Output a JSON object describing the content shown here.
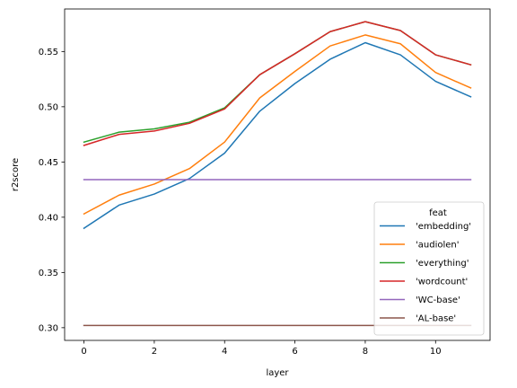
{
  "chart_data": {
    "type": "line",
    "title": "",
    "xlabel": "layer",
    "ylabel": "r2score",
    "xlim": [
      -0.55,
      11.55
    ],
    "ylim": [
      0.2885,
      0.5885
    ],
    "xticks": [
      0,
      2,
      4,
      6,
      8,
      10
    ],
    "xtick_labels": [
      "0",
      "2",
      "4",
      "6",
      "8",
      "10"
    ],
    "yticks": [
      0.3,
      0.35,
      0.4,
      0.45,
      0.5,
      0.55
    ],
    "ytick_labels": [
      "0.30",
      "0.35",
      "0.40",
      "0.45",
      "0.50",
      "0.55"
    ],
    "grid": false,
    "legend": {
      "title": "feat",
      "placement": "lower-right"
    },
    "x": [
      0,
      1,
      2,
      3,
      4,
      5,
      6,
      7,
      8,
      9,
      10,
      11
    ],
    "series": [
      {
        "name": "'embedding'",
        "color": "#1f77b4",
        "values": [
          0.39,
          0.411,
          0.421,
          0.435,
          0.458,
          0.496,
          0.521,
          0.543,
          0.558,
          0.547,
          0.523,
          0.509
        ]
      },
      {
        "name": "'audiolen'",
        "color": "#ff7f0e",
        "values": [
          0.403,
          0.42,
          0.43,
          0.444,
          0.468,
          0.508,
          0.532,
          0.555,
          0.565,
          0.557,
          0.531,
          0.517
        ]
      },
      {
        "name": "'everything'",
        "color": "#2ca02c",
        "values": [
          0.468,
          0.477,
          0.48,
          0.486,
          0.499,
          0.529,
          0.548,
          0.568,
          0.577,
          0.569,
          0.547,
          0.538
        ]
      },
      {
        "name": "'wordcount'",
        "color": "#d62728",
        "values": [
          0.465,
          0.475,
          0.478,
          0.485,
          0.498,
          0.529,
          0.548,
          0.568,
          0.577,
          0.569,
          0.547,
          0.538
        ]
      },
      {
        "name": "'WC-base'",
        "color": "#9467bd",
        "values": [
          0.434,
          0.434,
          0.434,
          0.434,
          0.434,
          0.434,
          0.434,
          0.434,
          0.434,
          0.434,
          0.434,
          0.434
        ]
      },
      {
        "name": "'AL-base'",
        "color": "#8c564b",
        "values": [
          0.302,
          0.302,
          0.302,
          0.302,
          0.302,
          0.302,
          0.302,
          0.302,
          0.302,
          0.302,
          0.302,
          0.302
        ]
      }
    ]
  }
}
